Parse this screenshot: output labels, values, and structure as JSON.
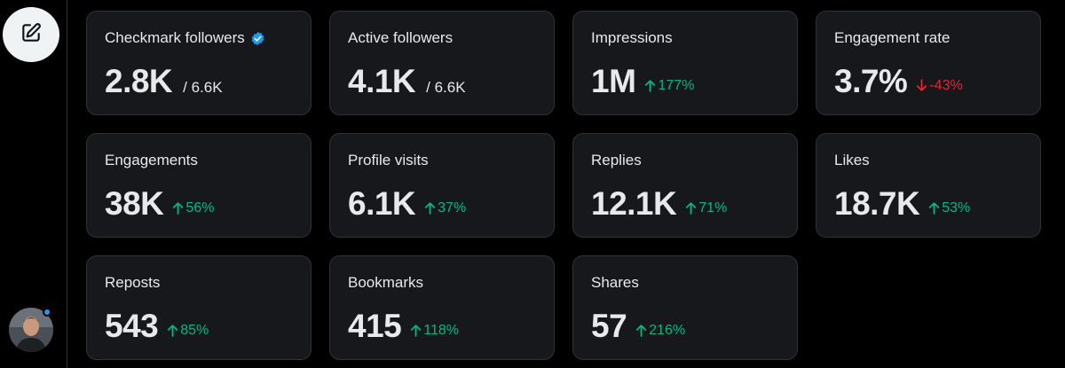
{
  "sidebar": {
    "compose_icon": "compose-icon",
    "avatar_status_color": "#1d9bf0"
  },
  "colors": {
    "up": "#00ba7c",
    "down": "#f4212e",
    "verified": "#1d9bf0"
  },
  "cards": [
    {
      "label": "Checkmark followers",
      "value": "2.8K",
      "total": "/ 6.6K",
      "verified": true
    },
    {
      "label": "Active followers",
      "value": "4.1K",
      "total": "/ 6.6K"
    },
    {
      "label": "Impressions",
      "value": "1M",
      "delta": "177%",
      "direction": "up"
    },
    {
      "label": "Engagement rate",
      "value": "3.7%",
      "delta": "-43%",
      "direction": "down"
    },
    {
      "label": "Engagements",
      "value": "38K",
      "delta": "56%",
      "direction": "up"
    },
    {
      "label": "Profile visits",
      "value": "6.1K",
      "delta": "37%",
      "direction": "up"
    },
    {
      "label": "Replies",
      "value": "12.1K",
      "delta": "71%",
      "direction": "up"
    },
    {
      "label": "Likes",
      "value": "18.7K",
      "delta": "53%",
      "direction": "up"
    },
    {
      "label": "Reposts",
      "value": "543",
      "delta": "85%",
      "direction": "up"
    },
    {
      "label": "Bookmarks",
      "value": "415",
      "delta": "118%",
      "direction": "up"
    },
    {
      "label": "Shares",
      "value": "57",
      "delta": "216%",
      "direction": "up"
    }
  ]
}
